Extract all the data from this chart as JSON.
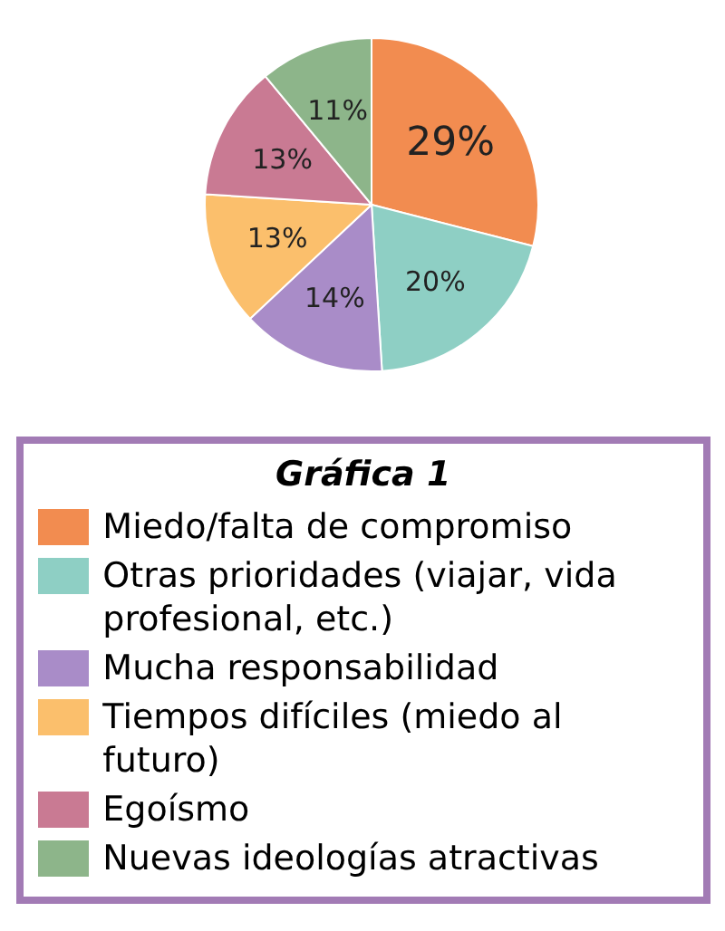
{
  "chart_data": {
    "type": "pie",
    "title": "Gráfica 1",
    "categories": [
      "Miedo/falta de compromiso",
      "Otras prioridades (viajar, vida profesional, etc.)",
      "Mucha responsabilidad",
      "Tiempos difíciles (miedo al futuro)",
      "Egoísmo",
      "Nuevas ideologías atractivas"
    ],
    "values": [
      29,
      20,
      14,
      13,
      13,
      11
    ],
    "colors": [
      "#f28c50",
      "#8ecfc4",
      "#a98cc8",
      "#fbbf6c",
      "#c97a93",
      "#8db58a"
    ],
    "value_labels": [
      "29%",
      "20%",
      "14%",
      "13%",
      "13%",
      "11%"
    ],
    "legend": "bottom"
  }
}
